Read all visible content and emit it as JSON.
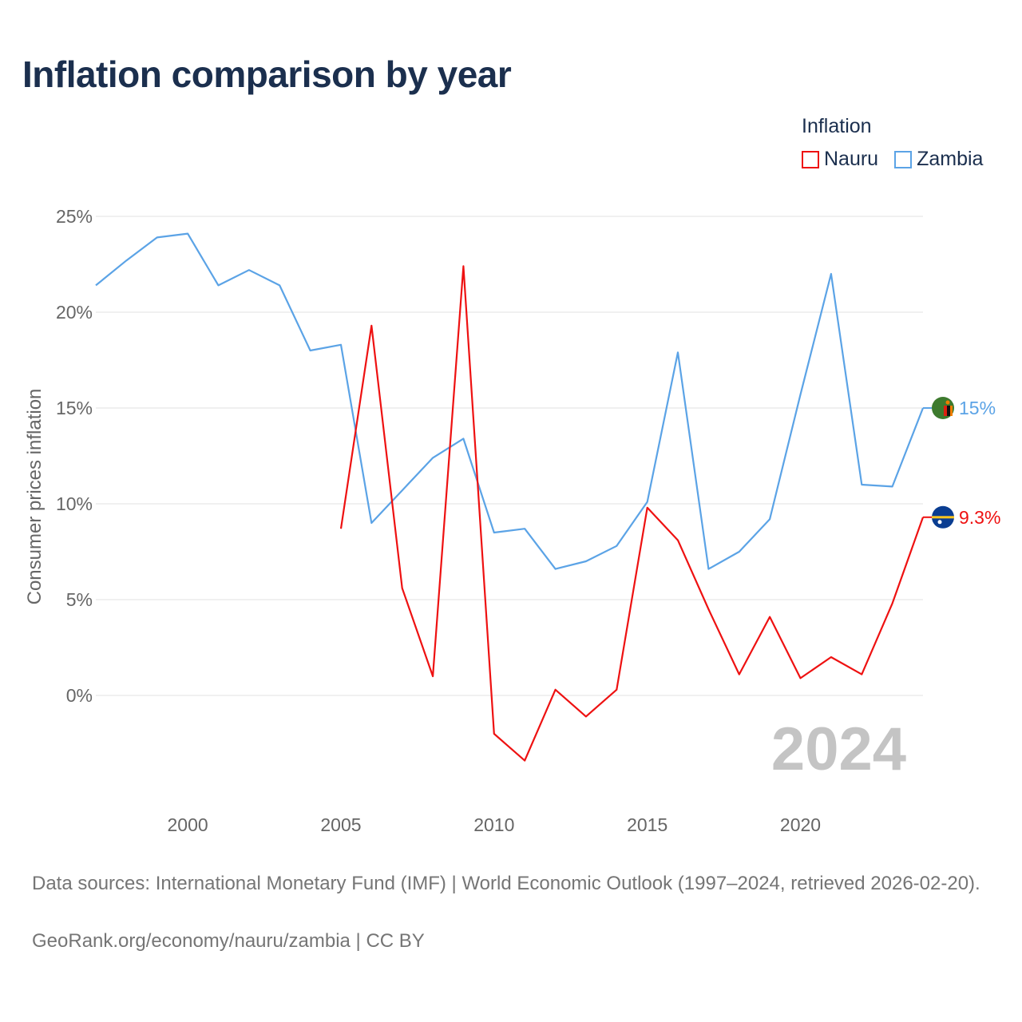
{
  "title": "Inflation comparison by year",
  "legend": {
    "title": "Inflation",
    "items": [
      {
        "name": "Nauru",
        "color": "#ee1111"
      },
      {
        "name": "Zambia",
        "color": "#5ba3e6"
      }
    ]
  },
  "source_text": "Data sources: International Monetary Fund (IMF) | World Economic Outlook (1997–2024, retrieved 2026-02-20).",
  "credit_text": "GeoRank.org/economy/nauru/zambia | CC BY",
  "chart_data": {
    "type": "line",
    "title": "Inflation comparison by year",
    "xlabel": "",
    "ylabel": "Consumer prices inflation",
    "xlim": [
      1997,
      2024
    ],
    "ylim": [
      -5,
      25
    ],
    "x_ticks": [
      2000,
      2005,
      2010,
      2015,
      2020
    ],
    "y_ticks": [
      0,
      5,
      10,
      15,
      20,
      25
    ],
    "y_tick_labels": [
      "0%",
      "5%",
      "10%",
      "15%",
      "20%",
      "25%"
    ],
    "grid": true,
    "year_watermark": "2024",
    "series": [
      {
        "name": "Zambia",
        "color": "#5ba3e6",
        "end_label": "15%",
        "flag": "zambia-flag",
        "x": [
          1997,
          1998,
          1999,
          2000,
          2001,
          2002,
          2003,
          2004,
          2005,
          2006,
          2007,
          2008,
          2009,
          2010,
          2011,
          2012,
          2013,
          2014,
          2015,
          2016,
          2017,
          2018,
          2019,
          2020,
          2021,
          2022,
          2023,
          2024
        ],
        "values": [
          21.4,
          22.7,
          23.9,
          24.1,
          21.4,
          22.2,
          21.4,
          18.0,
          18.3,
          9.0,
          10.7,
          12.4,
          13.4,
          8.5,
          8.7,
          6.6,
          7.0,
          7.8,
          10.1,
          17.9,
          6.6,
          7.5,
          9.2,
          15.7,
          22.0,
          11.0,
          10.9,
          15.0
        ]
      },
      {
        "name": "Nauru",
        "color": "#ee1111",
        "end_label": "9.3%",
        "flag": "nauru-flag",
        "x": [
          2005,
          2006,
          2007,
          2008,
          2009,
          2010,
          2011,
          2012,
          2013,
          2014,
          2015,
          2016,
          2017,
          2018,
          2019,
          2020,
          2021,
          2022,
          2023,
          2024
        ],
        "values": [
          8.7,
          19.3,
          5.6,
          1.0,
          22.4,
          -2.0,
          -3.4,
          0.3,
          -1.1,
          0.3,
          9.8,
          8.1,
          4.5,
          1.1,
          4.1,
          0.9,
          2.0,
          1.1,
          4.8,
          9.3
        ]
      }
    ]
  }
}
